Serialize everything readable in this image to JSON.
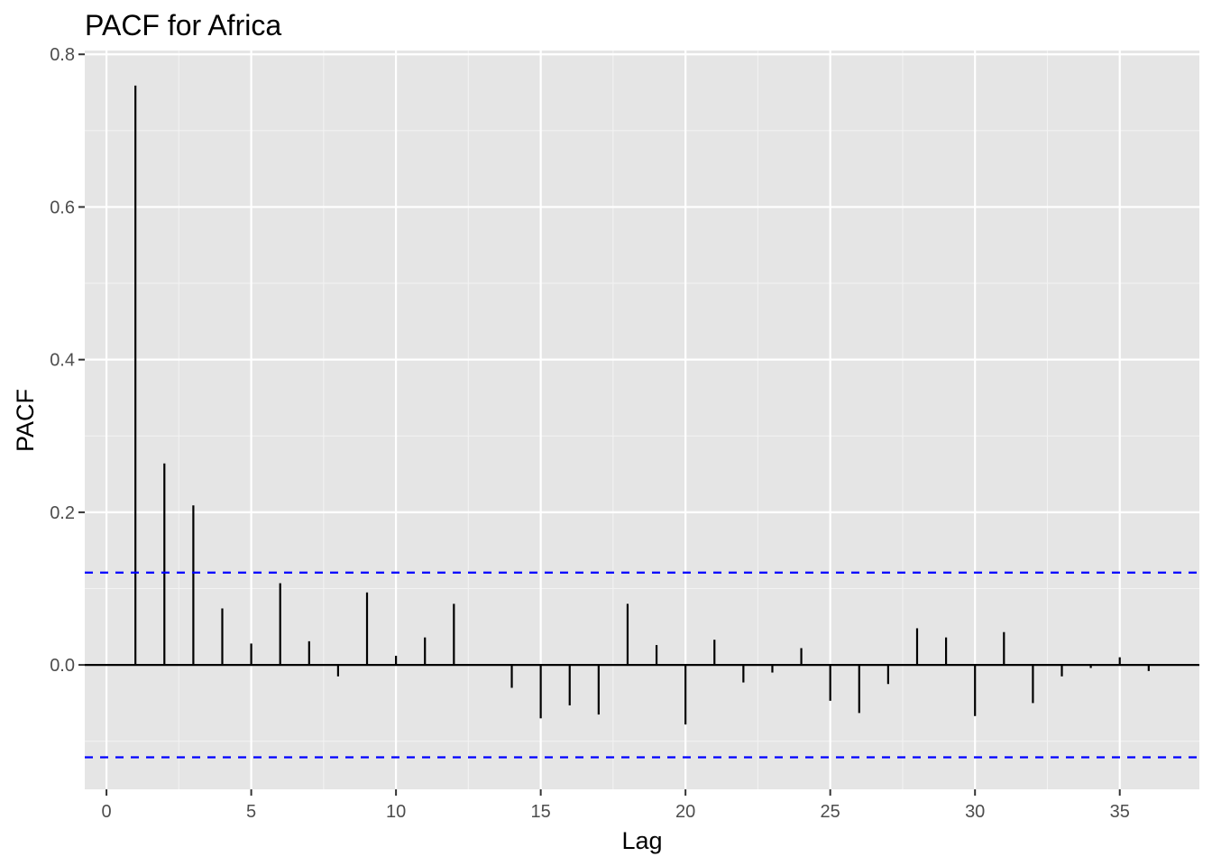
{
  "chart_data": {
    "type": "bar",
    "title": "PACF for Africa",
    "xlabel": "Lag",
    "ylabel": "PACF",
    "xlim": [
      -0.75,
      37.75
    ],
    "ylim": [
      -0.163,
      0.805
    ],
    "x_ticks": [
      0,
      5,
      10,
      15,
      20,
      25,
      30,
      35
    ],
    "x_tick_labels": [
      "0",
      "5",
      "10",
      "15",
      "20",
      "25",
      "30",
      "35"
    ],
    "y_ticks": [
      0.0,
      0.2,
      0.4,
      0.6,
      0.8
    ],
    "y_tick_labels": [
      "0.0",
      "0.2",
      "0.4",
      "0.6",
      "0.8"
    ],
    "grid": true,
    "lags": [
      1,
      2,
      3,
      4,
      5,
      6,
      7,
      8,
      9,
      10,
      11,
      12,
      13,
      14,
      15,
      16,
      17,
      18,
      19,
      20,
      21,
      22,
      23,
      24,
      25,
      26,
      27,
      28,
      29,
      30,
      31,
      32,
      33,
      34,
      35,
      36
    ],
    "values": [
      0.759,
      0.264,
      0.209,
      0.074,
      0.028,
      0.107,
      0.031,
      -0.015,
      0.095,
      0.012,
      0.036,
      0.08,
      0.001,
      -0.03,
      -0.07,
      -0.053,
      -0.065,
      0.08,
      0.026,
      -0.078,
      0.033,
      -0.023,
      -0.01,
      0.022,
      -0.047,
      -0.063,
      -0.025,
      0.048,
      0.036,
      -0.067,
      0.043,
      -0.05,
      -0.015,
      -0.004,
      0.01,
      -0.008
    ],
    "confidence_bound": 0.121,
    "colors": {
      "panel_background": "#e5e5e5",
      "grid_major": "#ffffff",
      "grid_minor": "#f2f2f2",
      "bars": "#000000",
      "zero_line": "#000000",
      "confidence_lines": "#0000ff",
      "tick_text": "#4d4d4d"
    }
  }
}
